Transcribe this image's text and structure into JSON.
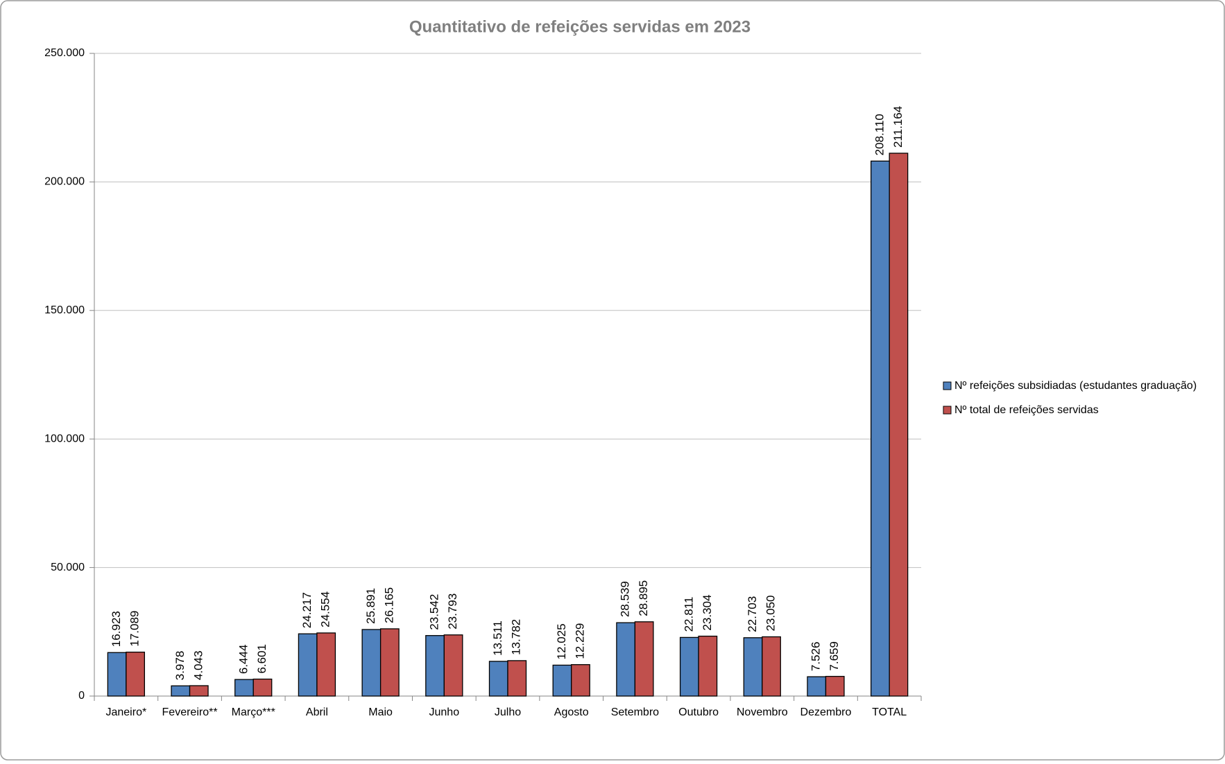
{
  "chart_data": {
    "type": "bar",
    "title": "Quantitativo de refeições servidas em 2023",
    "categories": [
      "Janeiro*",
      "Fevereiro**",
      "Março***",
      "Abril",
      "Maio",
      "Junho",
      "Julho",
      "Agosto",
      "Setembro",
      "Outubro",
      "Novembro",
      "Dezembro",
      "TOTAL"
    ],
    "series": [
      {
        "name": "Nº refeições subsidiadas (estudantes graduação)",
        "color": "#4f81bd",
        "values": [
          16923,
          3978,
          6444,
          24217,
          25891,
          23542,
          13511,
          12025,
          28539,
          22811,
          22703,
          7526,
          208110
        ],
        "value_labels": [
          "16.923",
          "3.978",
          "6.444",
          "24.217",
          "25.891",
          "23.542",
          "13.511",
          "12.025",
          "28.539",
          "22.811",
          "22.703",
          "7.526",
          "208.110"
        ]
      },
      {
        "name": "Nº total de refeições servidas",
        "color": "#c0504d",
        "values": [
          17089,
          4043,
          6601,
          24554,
          26165,
          23793,
          13782,
          12229,
          28895,
          23304,
          23050,
          7659,
          211164
        ],
        "value_labels": [
          "17.089",
          "4.043",
          "6.601",
          "24.554",
          "26.165",
          "23.793",
          "13.782",
          "12.229",
          "28.895",
          "23.304",
          "23.050",
          "7.659",
          "211.164"
        ]
      }
    ],
    "ylim": [
      0,
      250000
    ],
    "yticks": [
      0,
      {
        "value": 50000,
        "label": "50.000"
      },
      {
        "value": 100000,
        "label": "100.000"
      },
      {
        "value": 150000,
        "label": "150.000"
      },
      {
        "value": 200000,
        "label": "200.000"
      },
      {
        "value": 250000,
        "label": "250.000"
      }
    ],
    "grid": true,
    "legend": "right"
  }
}
